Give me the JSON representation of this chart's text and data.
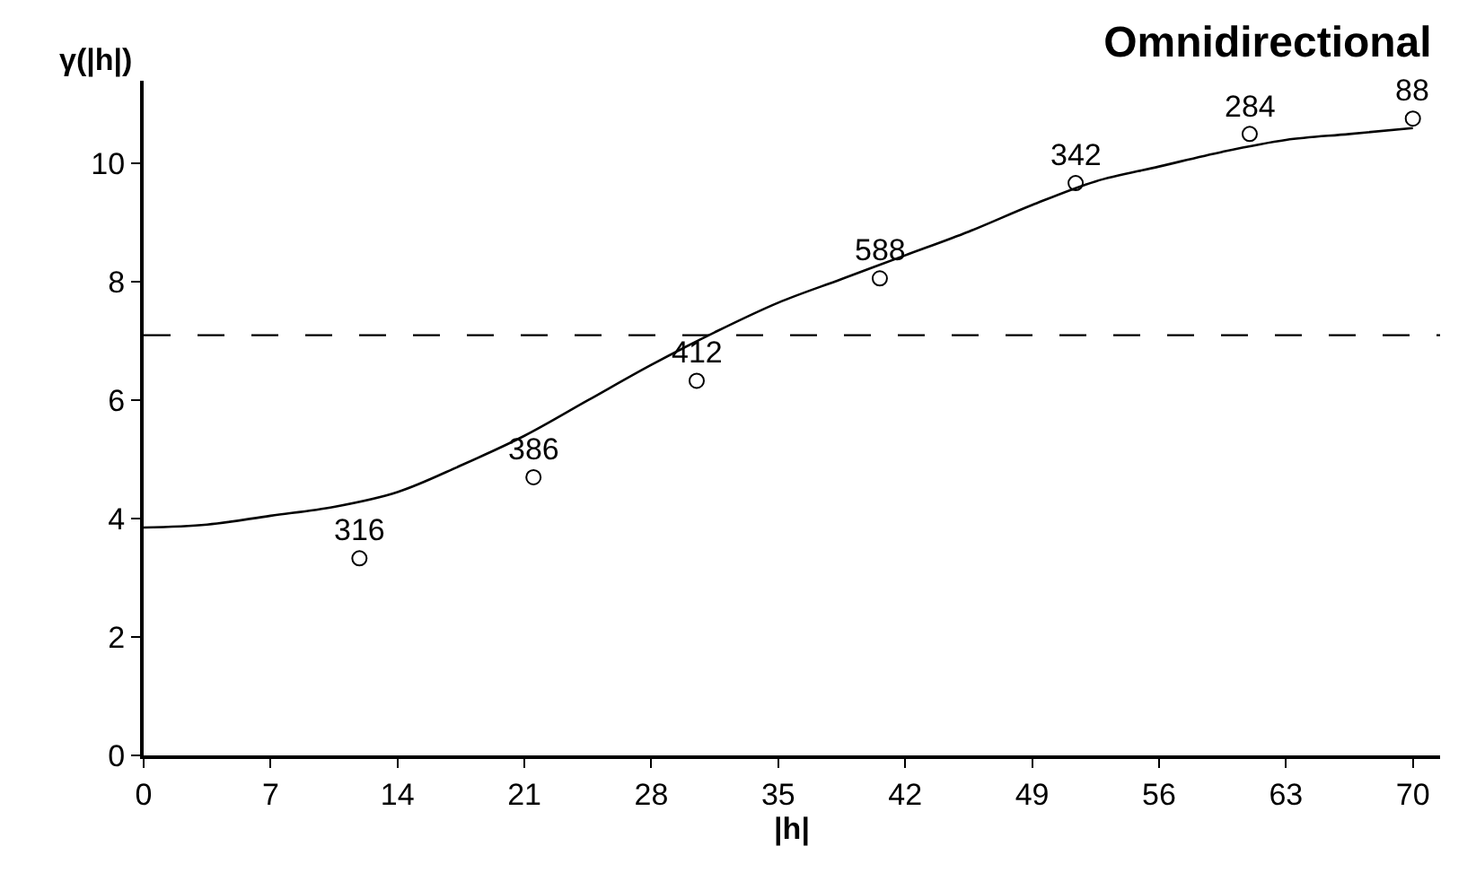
{
  "chart_data": {
    "type": "scatter",
    "title": "Omnidirectional",
    "xlabel": "|h|",
    "ylabel": "γ(|h|)",
    "xlim": [
      0,
      71.5
    ],
    "ylim": [
      0,
      11.4
    ],
    "xticks": [
      0,
      7,
      14,
      21,
      28,
      35,
      42,
      49,
      56,
      63,
      70
    ],
    "yticks": [
      0,
      2,
      4,
      6,
      8,
      10
    ],
    "series": [
      {
        "type": "scatter",
        "color": "#000000",
        "marker": "circle",
        "x": [
          11.9,
          21.5,
          30.5,
          40.6,
          51.4,
          61,
          70
        ],
        "values": [
          3.33,
          4.7,
          6.33,
          8.06,
          9.67,
          10.5,
          10.76
        ]
      },
      {
        "type": "line",
        "color": "#000000",
        "line_style": "solid",
        "x": [
          0,
          3.5,
          7,
          10.5,
          14,
          17.5,
          21,
          24.5,
          28,
          31.5,
          35,
          38.5,
          42,
          45.5,
          49,
          52.5,
          56,
          59.5,
          63,
          66.5,
          70
        ],
        "values": [
          3.85,
          3.9,
          4.05,
          4.2,
          4.45,
          4.9,
          5.4,
          6.0,
          6.6,
          7.15,
          7.65,
          8.05,
          8.45,
          8.85,
          9.3,
          9.7,
          9.95,
          10.2,
          10.4,
          10.5,
          10.6
        ]
      }
    ],
    "annotations": [
      {
        "text": "316",
        "x": 11.9,
        "y": 3.33
      },
      {
        "text": "386",
        "x": 21.5,
        "y": 4.7
      },
      {
        "text": "412",
        "x": 30.5,
        "y": 6.33
      },
      {
        "text": "588",
        "x": 40.6,
        "y": 8.06
      },
      {
        "text": "342",
        "x": 51.4,
        "y": 9.67
      },
      {
        "text": "284",
        "x": 61,
        "y": 10.5
      },
      {
        "text": "88",
        "x": 70,
        "y": 10.76
      }
    ],
    "ref_lines": [
      {
        "axis": "y",
        "value": 7.1,
        "color": "#000000",
        "line_style": "dashed"
      }
    ]
  }
}
